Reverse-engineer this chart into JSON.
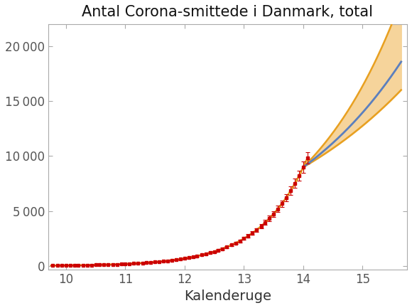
{
  "title": "Antal Corona-smittede i Danmark, total",
  "xlabel": "Kalenderuge",
  "ylabel": "",
  "xlim": [
    9.7,
    15.75
  ],
  "ylim": [
    -300,
    22000
  ],
  "xticks": [
    10,
    11,
    12,
    13,
    14,
    15
  ],
  "yticks": [
    0,
    5000,
    10000,
    15000,
    20000
  ],
  "orange_color": "#E8A020",
  "blue_color": "#5B7FBE",
  "band_color": "#F5D090",
  "red_color": "#CC0000",
  "bg_color": "#FFFFFF",
  "title_fontsize": 15,
  "label_fontsize": 14,
  "tick_fontsize": 12
}
